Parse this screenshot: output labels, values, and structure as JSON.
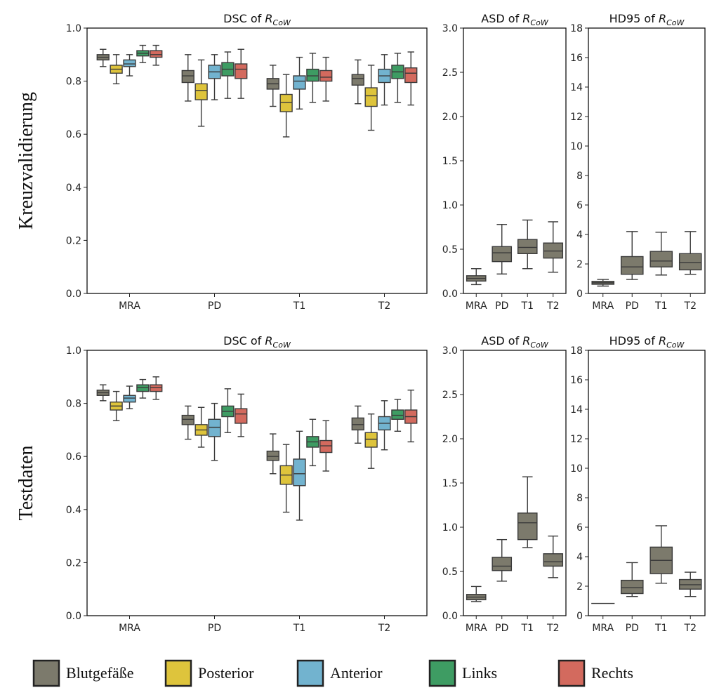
{
  "colors": {
    "Blutgefäße": "#7c7a6c",
    "Posterior": "#dec43c",
    "Anterior": "#72b3cf",
    "Links": "#3e9c63",
    "Rechts": "#d36a5e"
  },
  "row_labels": [
    "Kreuzvalidierung",
    "Testdaten"
  ],
  "legend": [
    {
      "label": "Blutgefäße",
      "color": "#7c7a6c"
    },
    {
      "label": "Posterior",
      "color": "#dec43c"
    },
    {
      "label": "Anterior",
      "color": "#72b3cf"
    },
    {
      "label": "Links",
      "color": "#3e9c63"
    },
    {
      "label": "Rechts",
      "color": "#d36a5e"
    }
  ],
  "chart_data": [
    {
      "id": "cv_dsc",
      "type": "box",
      "row": "Kreuzvalidierung",
      "title_prefix": "DSC of ",
      "title_symbol": "R",
      "title_subscript": "CoW",
      "ylim": [
        0,
        1
      ],
      "yticks": [
        "0.0",
        "0.2",
        "0.4",
        "0.6",
        "0.8",
        "1.0"
      ],
      "categories": [
        "MRA",
        "PD",
        "T1",
        "T2"
      ],
      "series": [
        {
          "name": "Blutgefäße",
          "boxes": [
            [
              0.855,
              0.88,
              0.89,
              0.9,
              0.92
            ],
            [
              0.725,
              0.795,
              0.82,
              0.84,
              0.9
            ],
            [
              0.705,
              0.77,
              0.79,
              0.81,
              0.86
            ],
            [
              0.715,
              0.785,
              0.81,
              0.825,
              0.88
            ]
          ]
        },
        {
          "name": "Posterior",
          "boxes": [
            [
              0.79,
              0.83,
              0.845,
              0.86,
              0.9
            ],
            [
              0.63,
              0.73,
              0.765,
              0.79,
              0.88
            ],
            [
              0.59,
              0.685,
              0.72,
              0.75,
              0.825
            ],
            [
              0.615,
              0.705,
              0.745,
              0.775,
              0.86
            ]
          ]
        },
        {
          "name": "Anterior",
          "boxes": [
            [
              0.82,
              0.855,
              0.865,
              0.88,
              0.9
            ],
            [
              0.73,
              0.81,
              0.835,
              0.86,
              0.9
            ],
            [
              0.695,
              0.77,
              0.8,
              0.82,
              0.89
            ],
            [
              0.71,
              0.795,
              0.82,
              0.845,
              0.9
            ]
          ]
        },
        {
          "name": "Links",
          "boxes": [
            [
              0.87,
              0.895,
              0.905,
              0.915,
              0.935
            ],
            [
              0.735,
              0.82,
              0.845,
              0.87,
              0.91
            ],
            [
              0.72,
              0.8,
              0.82,
              0.845,
              0.905
            ],
            [
              0.72,
              0.81,
              0.835,
              0.86,
              0.905
            ]
          ]
        },
        {
          "name": "Rechts",
          "boxes": [
            [
              0.86,
              0.89,
              0.9,
              0.915,
              0.935
            ],
            [
              0.735,
              0.81,
              0.845,
              0.865,
              0.92
            ],
            [
              0.725,
              0.8,
              0.815,
              0.84,
              0.89
            ],
            [
              0.71,
              0.795,
              0.83,
              0.85,
              0.91
            ]
          ]
        }
      ]
    },
    {
      "id": "cv_asd",
      "type": "box",
      "row": "Kreuzvalidierung",
      "title_prefix": "ASD of ",
      "title_symbol": "R",
      "title_subscript": "CoW",
      "ylim": [
        0,
        3
      ],
      "yticks": [
        "0.0",
        "0.5",
        "1.0",
        "1.5",
        "2.0",
        "2.5",
        "3.0"
      ],
      "categories": [
        "MRA",
        "PD",
        "T1",
        "T2"
      ],
      "series": [
        {
          "name": "Blutgefäße",
          "boxes": [
            [
              0.1,
              0.14,
              0.17,
              0.2,
              0.28
            ],
            [
              0.22,
              0.36,
              0.46,
              0.53,
              0.78
            ],
            [
              0.28,
              0.45,
              0.52,
              0.61,
              0.83
            ],
            [
              0.24,
              0.4,
              0.48,
              0.57,
              0.81
            ]
          ]
        }
      ]
    },
    {
      "id": "cv_hd95",
      "type": "box",
      "row": "Kreuzvalidierung",
      "title_prefix": "HD95 of ",
      "title_symbol": "R",
      "title_subscript": "CoW",
      "ylim": [
        0,
        18
      ],
      "yticks": [
        "0",
        "2",
        "4",
        "6",
        "8",
        "10",
        "12",
        "14",
        "16",
        "18"
      ],
      "categories": [
        "MRA",
        "PD",
        "T1",
        "T2"
      ],
      "series": [
        {
          "name": "Blutgefäße",
          "boxes": [
            [
              0.5,
              0.62,
              0.72,
              0.82,
              0.95
            ],
            [
              0.95,
              1.3,
              1.8,
              2.5,
              4.2
            ],
            [
              1.25,
              1.8,
              2.2,
              2.85,
              4.15
            ],
            [
              1.3,
              1.6,
              2.1,
              2.7,
              4.2
            ]
          ]
        }
      ]
    },
    {
      "id": "test_dsc",
      "type": "box",
      "row": "Testdaten",
      "title_prefix": "DSC of ",
      "title_symbol": "R",
      "title_subscript": "CoW",
      "ylim": [
        0,
        1
      ],
      "yticks": [
        "0.0",
        "0.2",
        "0.4",
        "0.6",
        "0.8",
        "1.0"
      ],
      "categories": [
        "MRA",
        "PD",
        "T1",
        "T2"
      ],
      "series": [
        {
          "name": "Blutgefäße",
          "boxes": [
            [
              0.81,
              0.83,
              0.84,
              0.85,
              0.87
            ],
            [
              0.665,
              0.72,
              0.74,
              0.755,
              0.79
            ],
            [
              0.535,
              0.585,
              0.6,
              0.62,
              0.685
            ],
            [
              0.65,
              0.7,
              0.72,
              0.745,
              0.79
            ]
          ]
        },
        {
          "name": "Posterior",
          "boxes": [
            [
              0.735,
              0.775,
              0.79,
              0.805,
              0.845
            ],
            [
              0.635,
              0.68,
              0.7,
              0.72,
              0.785
            ],
            [
              0.39,
              0.495,
              0.53,
              0.565,
              0.645
            ],
            [
              0.555,
              0.635,
              0.665,
              0.69,
              0.76
            ]
          ]
        },
        {
          "name": "Anterior",
          "boxes": [
            [
              0.78,
              0.805,
              0.82,
              0.83,
              0.865
            ],
            [
              0.585,
              0.675,
              0.71,
              0.74,
              0.8
            ],
            [
              0.36,
              0.49,
              0.535,
              0.59,
              0.695
            ],
            [
              0.625,
              0.7,
              0.725,
              0.75,
              0.81
            ]
          ]
        },
        {
          "name": "Links",
          "boxes": [
            [
              0.82,
              0.845,
              0.86,
              0.87,
              0.89
            ],
            [
              0.69,
              0.75,
              0.77,
              0.79,
              0.855
            ],
            [
              0.565,
              0.635,
              0.655,
              0.675,
              0.74
            ],
            [
              0.695,
              0.74,
              0.755,
              0.775,
              0.815
            ]
          ]
        },
        {
          "name": "Rechts",
          "boxes": [
            [
              0.815,
              0.845,
              0.86,
              0.87,
              0.9
            ],
            [
              0.675,
              0.725,
              0.76,
              0.78,
              0.835
            ],
            [
              0.545,
              0.615,
              0.64,
              0.66,
              0.735
            ],
            [
              0.655,
              0.725,
              0.75,
              0.775,
              0.85
            ]
          ]
        }
      ]
    },
    {
      "id": "test_asd",
      "type": "box",
      "row": "Testdaten",
      "title_prefix": "ASD of ",
      "title_symbol": "R",
      "title_subscript": "CoW",
      "ylim": [
        0,
        3
      ],
      "yticks": [
        "0.0",
        "0.5",
        "1.0",
        "1.5",
        "2.0",
        "2.5",
        "3.0"
      ],
      "categories": [
        "MRA",
        "PD",
        "T1",
        "T2"
      ],
      "series": [
        {
          "name": "Blutgefäße",
          "boxes": [
            [
              0.16,
              0.18,
              0.21,
              0.24,
              0.33
            ],
            [
              0.39,
              0.51,
              0.56,
              0.66,
              0.86
            ],
            [
              0.77,
              0.86,
              1.05,
              1.16,
              1.57
            ],
            [
              0.43,
              0.56,
              0.61,
              0.7,
              0.9
            ]
          ]
        }
      ]
    },
    {
      "id": "test_hd95",
      "type": "box",
      "row": "Testdaten",
      "title_prefix": "HD95 of ",
      "title_symbol": "R",
      "title_subscript": "CoW",
      "ylim": [
        0,
        18
      ],
      "yticks": [
        "0",
        "2",
        "4",
        "6",
        "8",
        "10",
        "12",
        "14",
        "16",
        "18"
      ],
      "categories": [
        "MRA",
        "PD",
        "T1",
        "T2"
      ],
      "series": [
        {
          "name": "Blutgefäße",
          "boxes": [
            [
              0.83,
              0.83,
              0.83,
              0.83,
              0.83
            ],
            [
              1.3,
              1.5,
              1.9,
              2.4,
              3.6
            ],
            [
              2.2,
              2.85,
              3.75,
              4.65,
              6.1
            ],
            [
              1.3,
              1.8,
              2.1,
              2.45,
              2.95
            ]
          ]
        }
      ]
    }
  ]
}
